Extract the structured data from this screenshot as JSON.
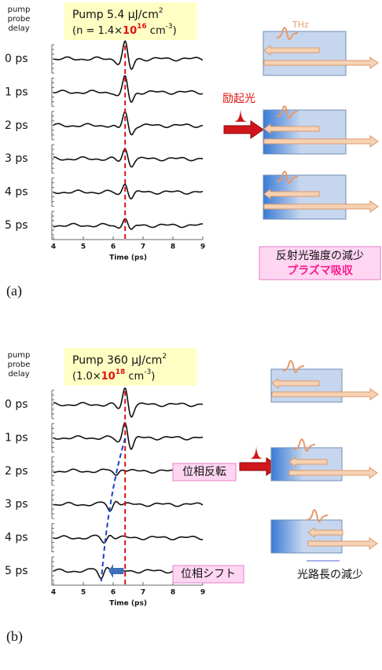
{
  "panels": [
    {
      "label": "(a)",
      "delay_header": [
        "pump",
        "probe",
        "delay"
      ],
      "pump_text": "Pump 5.4 μJ/cm",
      "pump_sup": "2",
      "density_pre": "(n = 1.4×",
      "density_base": "10",
      "density_exp": "16",
      "density_unit": " cm",
      "density_unit_exp": "-3",
      "density_post": ")",
      "delays": [
        "0 ps",
        "1 ps",
        "2 ps",
        "3 ps",
        "4 ps",
        "5 ps"
      ],
      "x_ticks": [
        "4",
        "5",
        "6",
        "7",
        "8",
        "9"
      ],
      "x_label": "Time (ps)",
      "thz_label": "THz",
      "excitation_label": "励起光",
      "note_lines": [
        "反射光強度の減少",
        "プラズマ吸収"
      ]
    },
    {
      "label": "(b)",
      "delay_header": [
        "pump",
        "probe",
        "delay"
      ],
      "pump_text": "Pump 360 μJ/cm",
      "pump_sup": "2",
      "density_pre": "(1.0×",
      "density_base": "10",
      "density_exp": "18",
      "density_unit": " cm",
      "density_unit_exp": "-3",
      "density_post": ")",
      "delays": [
        "0 ps",
        "1 ps",
        "2 ps",
        "3 ps",
        "4 ps",
        "5 ps"
      ],
      "x_ticks": [
        "4",
        "5",
        "6",
        "7",
        "8",
        "9"
      ],
      "x_label": "Time (ps)",
      "annotations": [
        "位相反転",
        "位相シフト"
      ],
      "note_lines": [
        "光路長の減少"
      ]
    }
  ]
}
